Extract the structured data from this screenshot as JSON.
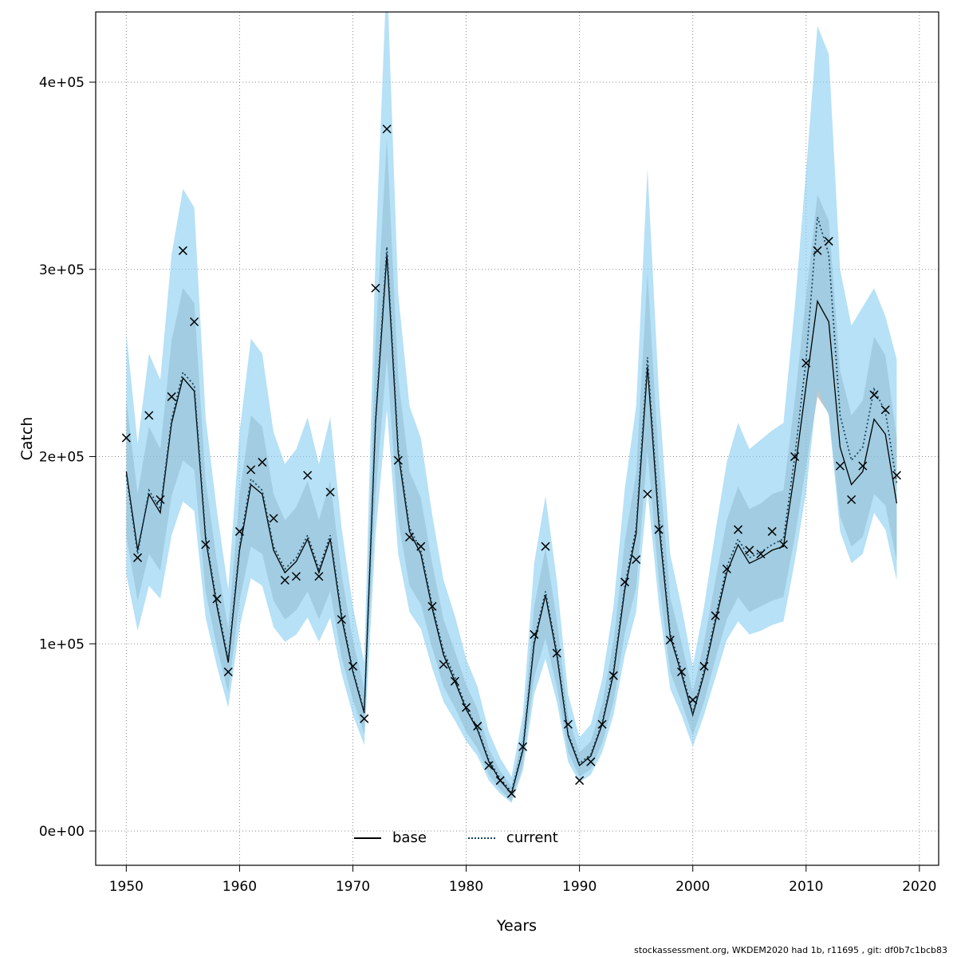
{
  "footer": {
    "text": "stockassessment.org, WKDEM2020 had 1b, r11695 , git: df0b7c1bcb83"
  },
  "legend": {
    "items": [
      {
        "label": "base"
      },
      {
        "label": "current"
      }
    ]
  },
  "chart_data": {
    "type": "line",
    "title": "",
    "xlabel": "Years",
    "ylabel": "Catch",
    "grid": true,
    "legend_position": "bottom-center",
    "xlim": [
      1947.3,
      2021.7
    ],
    "ylim": [
      -18300,
      437500
    ],
    "x_ticks": [
      1950,
      1960,
      1970,
      1980,
      1990,
      2000,
      2010,
      2020
    ],
    "y_ticks": [
      {
        "value": 0,
        "label": "0e+00"
      },
      {
        "value": 100000,
        "label": "1e+05"
      },
      {
        "value": 200000,
        "label": "2e+05"
      },
      {
        "value": 300000,
        "label": "3e+05"
      },
      {
        "value": 400000,
        "label": "4e+05"
      }
    ],
    "colors": {
      "grid": "#8a8a8a",
      "frame": "#000000",
      "marker": "#000000",
      "base_line": "#000000",
      "base_band": "rgba(130,130,130,0.45)",
      "current_line": "#16405c",
      "current_band": "rgba(137,207,240,0.62)"
    },
    "marker": {
      "symbol": "x",
      "meaning": "observed catch"
    },
    "years": [
      1950,
      1951,
      1952,
      1953,
      1954,
      1955,
      1956,
      1957,
      1958,
      1959,
      1960,
      1961,
      1962,
      1963,
      1964,
      1965,
      1966,
      1967,
      1968,
      1969,
      1970,
      1971,
      1972,
      1973,
      1974,
      1975,
      1976,
      1977,
      1978,
      1979,
      1980,
      1981,
      1982,
      1983,
      1984,
      1985,
      1986,
      1987,
      1988,
      1989,
      1990,
      1991,
      1992,
      1993,
      1994,
      1995,
      1996,
      1997,
      1998,
      1999,
      2000,
      2001,
      2002,
      2003,
      2004,
      2005,
      2006,
      2007,
      2008,
      2009,
      2010,
      2011,
      2012,
      2013,
      2014,
      2015,
      2016,
      2017,
      2018
    ],
    "observations": [
      210000,
      146000,
      222000,
      177000,
      232000,
      310000,
      272000,
      153000,
      124000,
      85000,
      160000,
      193000,
      197000,
      167000,
      134000,
      136000,
      190000,
      136000,
      181000,
      113000,
      88000,
      60000,
      290000,
      375000,
      198000,
      157000,
      152000,
      120000,
      89000,
      80000,
      66000,
      56000,
      35000,
      27000,
      20000,
      45000,
      105000,
      152000,
      95000,
      57000,
      27000,
      37000,
      57000,
      83000,
      133000,
      145000,
      180000,
      161000,
      102000,
      85000,
      70000,
      88000,
      115000,
      140000,
      161000,
      150000,
      148000,
      160000,
      153000,
      200000,
      250000,
      310000,
      315000,
      195000,
      177000,
      195000,
      233000,
      225000,
      190000
    ],
    "series": [
      {
        "name": "base",
        "style": "solid",
        "values": [
          192000,
          150000,
          180000,
          170000,
          218000,
          242000,
          235000,
          156000,
          120000,
          90000,
          150000,
          185000,
          180000,
          150000,
          138000,
          144000,
          156000,
          138000,
          156000,
          114000,
          85000,
          63000,
          218000,
          308000,
          202000,
          160000,
          148000,
          119000,
          94000,
          80000,
          65000,
          54000,
          37000,
          27000,
          20000,
          43000,
          100000,
          126000,
          94000,
          51000,
          35000,
          40000,
          57000,
          84000,
          129000,
          159000,
          248000,
          164000,
          104000,
          84000,
          62000,
          84000,
          112000,
          138000,
          153000,
          143000,
          146000,
          150000,
          152000,
          192000,
          238000,
          283000,
          272000,
          205000,
          185000,
          192000,
          220000,
          212000,
          175000
        ],
        "lo": [
          157000,
          123000,
          148000,
          139000,
          179000,
          198000,
          193000,
          128000,
          98000,
          74000,
          123000,
          152000,
          148000,
          123000,
          113000,
          118000,
          128000,
          113000,
          128000,
          93000,
          70000,
          52000,
          179000,
          253000,
          166000,
          131000,
          121000,
          98000,
          77000,
          66000,
          53000,
          44000,
          30000,
          22000,
          16000,
          35000,
          82000,
          103000,
          77000,
          42000,
          29000,
          33000,
          47000,
          69000,
          106000,
          130000,
          203000,
          134000,
          85000,
          69000,
          51000,
          69000,
          92000,
          113000,
          125000,
          117000,
          120000,
          123000,
          125000,
          157000,
          195000,
          232000,
          223000,
          168000,
          152000,
          157000,
          180000,
          174000,
          144000
        ],
        "hi": [
          230000,
          180000,
          216000,
          204000,
          262000,
          290000,
          282000,
          187000,
          144000,
          108000,
          180000,
          222000,
          216000,
          180000,
          166000,
          173000,
          187000,
          166000,
          187000,
          137000,
          102000,
          76000,
          262000,
          370000,
          242000,
          192000,
          178000,
          143000,
          113000,
          96000,
          78000,
          65000,
          44000,
          32000,
          24000,
          52000,
          120000,
          151000,
          113000,
          61000,
          42000,
          48000,
          68000,
          101000,
          155000,
          191000,
          298000,
          197000,
          125000,
          101000,
          74000,
          101000,
          134000,
          166000,
          184000,
          172000,
          175000,
          180000,
          182000,
          230000,
          286000,
          340000,
          326000,
          246000,
          222000,
          230000,
          264000,
          254000,
          210000
        ]
      },
      {
        "name": "current",
        "style": "dotted",
        "values": [
          190000,
          148000,
          182000,
          172000,
          220000,
          245000,
          238000,
          158000,
          122000,
          92000,
          152000,
          188000,
          182000,
          152000,
          140000,
          146000,
          158000,
          140000,
          158000,
          116000,
          86000,
          64000,
          220000,
          312000,
          205000,
          162000,
          150000,
          121000,
          96000,
          82000,
          66000,
          55000,
          38000,
          28000,
          21000,
          44000,
          102000,
          128000,
          96000,
          52000,
          36000,
          41000,
          58000,
          86000,
          131000,
          162000,
          253000,
          168000,
          106000,
          86000,
          63000,
          86000,
          114000,
          141000,
          156000,
          146000,
          149000,
          153000,
          156000,
          200000,
          252000,
          328000,
          308000,
          222000,
          198000,
          205000,
          236000,
          224000,
          186000
        ],
        "lo": [
          137000,
          107000,
          131000,
          124000,
          158000,
          176000,
          171000,
          114000,
          88000,
          66000,
          109000,
          135000,
          131000,
          109000,
          101000,
          105000,
          114000,
          101000,
          114000,
          84000,
          62000,
          46000,
          158000,
          225000,
          148000,
          117000,
          108000,
          87000,
          69000,
          59000,
          48000,
          40000,
          27000,
          20000,
          15000,
          32000,
          73000,
          92000,
          69000,
          37000,
          26000,
          30000,
          42000,
          62000,
          94000,
          117000,
          182000,
          121000,
          76000,
          62000,
          45000,
          62000,
          82000,
          102000,
          112000,
          105000,
          107000,
          110000,
          112000,
          144000,
          181000,
          236000,
          222000,
          160000,
          143000,
          148000,
          170000,
          161000,
          134000
        ],
        "hi": [
          266000,
          207000,
          255000,
          241000,
          308000,
          343000,
          333000,
          221000,
          171000,
          129000,
          213000,
          263000,
          255000,
          213000,
          196000,
          204000,
          221000,
          196000,
          221000,
          162000,
          120000,
          90000,
          308000,
          460000,
          287000,
          227000,
          210000,
          169000,
          134000,
          115000,
          92000,
          77000,
          53000,
          39000,
          29000,
          62000,
          143000,
          179000,
          134000,
          73000,
          50000,
          57000,
          81000,
          120000,
          183000,
          227000,
          354000,
          235000,
          148000,
          120000,
          88000,
          120000,
          160000,
          197000,
          218000,
          204000,
          209000,
          214000,
          218000,
          280000,
          353000,
          430000,
          415000,
          300000,
          270000,
          280000,
          290000,
          275000,
          252000
        ]
      }
    ]
  }
}
